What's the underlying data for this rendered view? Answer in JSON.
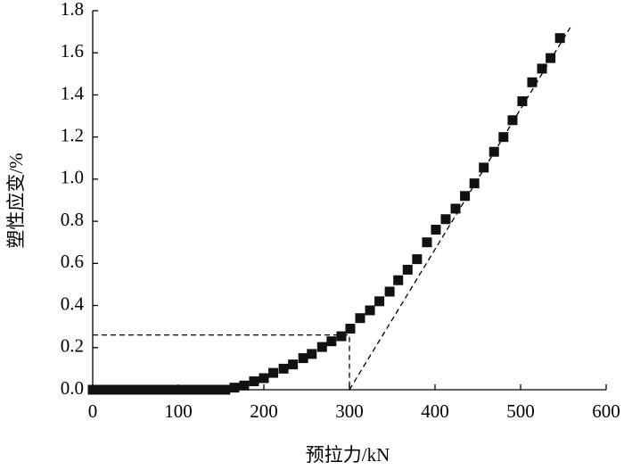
{
  "chart_data": {
    "type": "scatter",
    "xlabel": "预拉力/kN",
    "ylabel": "塑性应变/%",
    "xlim": [
      0,
      600
    ],
    "ylim": [
      0,
      1.8
    ],
    "xticks": [
      0,
      100,
      200,
      300,
      400,
      500,
      600
    ],
    "yticks": [
      {
        "value": 0,
        "label": "0.0"
      },
      {
        "value": 0.2,
        "label": "0.2"
      },
      {
        "value": 0.4,
        "label": "0.4"
      },
      {
        "value": 0.6,
        "label": "0.6"
      },
      {
        "value": 0.8,
        "label": "0.8"
      },
      {
        "value": 1.0,
        "label": "1.0"
      },
      {
        "value": 1.2,
        "label": "1.2"
      },
      {
        "value": 1.4,
        "label": "1.4"
      },
      {
        "value": 1.6,
        "label": "1.6"
      },
      {
        "value": 1.8,
        "label": "1.8"
      }
    ],
    "color": "#111111",
    "x": [
      0,
      5,
      10,
      15,
      20,
      25,
      30,
      35,
      40,
      45,
      50,
      55,
      60,
      65,
      70,
      75,
      80,
      85,
      90,
      95,
      100,
      105,
      110,
      115,
      120,
      125,
      130,
      135,
      140,
      145,
      150,
      155,
      165.6,
      177,
      188.5,
      200,
      211,
      223,
      234,
      246,
      256,
      268,
      279,
      290.6,
      301,
      312.5,
      324,
      335,
      347,
      357,
      368,
      379,
      390.6,
      401,
      412.5,
      424,
      435,
      446,
      457,
      469,
      480,
      490.6,
      502,
      513.5,
      525,
      535,
      546
    ],
    "values": [
      0,
      0,
      0,
      0,
      0,
      0,
      0,
      0,
      0,
      0,
      0,
      0,
      0,
      0,
      0,
      0,
      0,
      0,
      0,
      0,
      0,
      0,
      0,
      0,
      0,
      0,
      0,
      0,
      0,
      0,
      0,
      0,
      0.01,
      0.02,
      0.04,
      0.055,
      0.08,
      0.1,
      0.12,
      0.15,
      0.17,
      0.203,
      0.23,
      0.254,
      0.29,
      0.34,
      0.377,
      0.42,
      0.466,
      0.52,
      0.57,
      0.62,
      0.7,
      0.76,
      0.81,
      0.86,
      0.92,
      0.98,
      1.055,
      1.13,
      1.2,
      1.28,
      1.37,
      1.46,
      1.525,
      1.575,
      1.67
    ],
    "guides": [
      {
        "x": [
          0,
          300,
          300
        ],
        "y": [
          0.26,
          0.26,
          0
        ]
      },
      {
        "x": [
          300,
          558
        ],
        "y": [
          0,
          1.72
        ]
      }
    ]
  }
}
